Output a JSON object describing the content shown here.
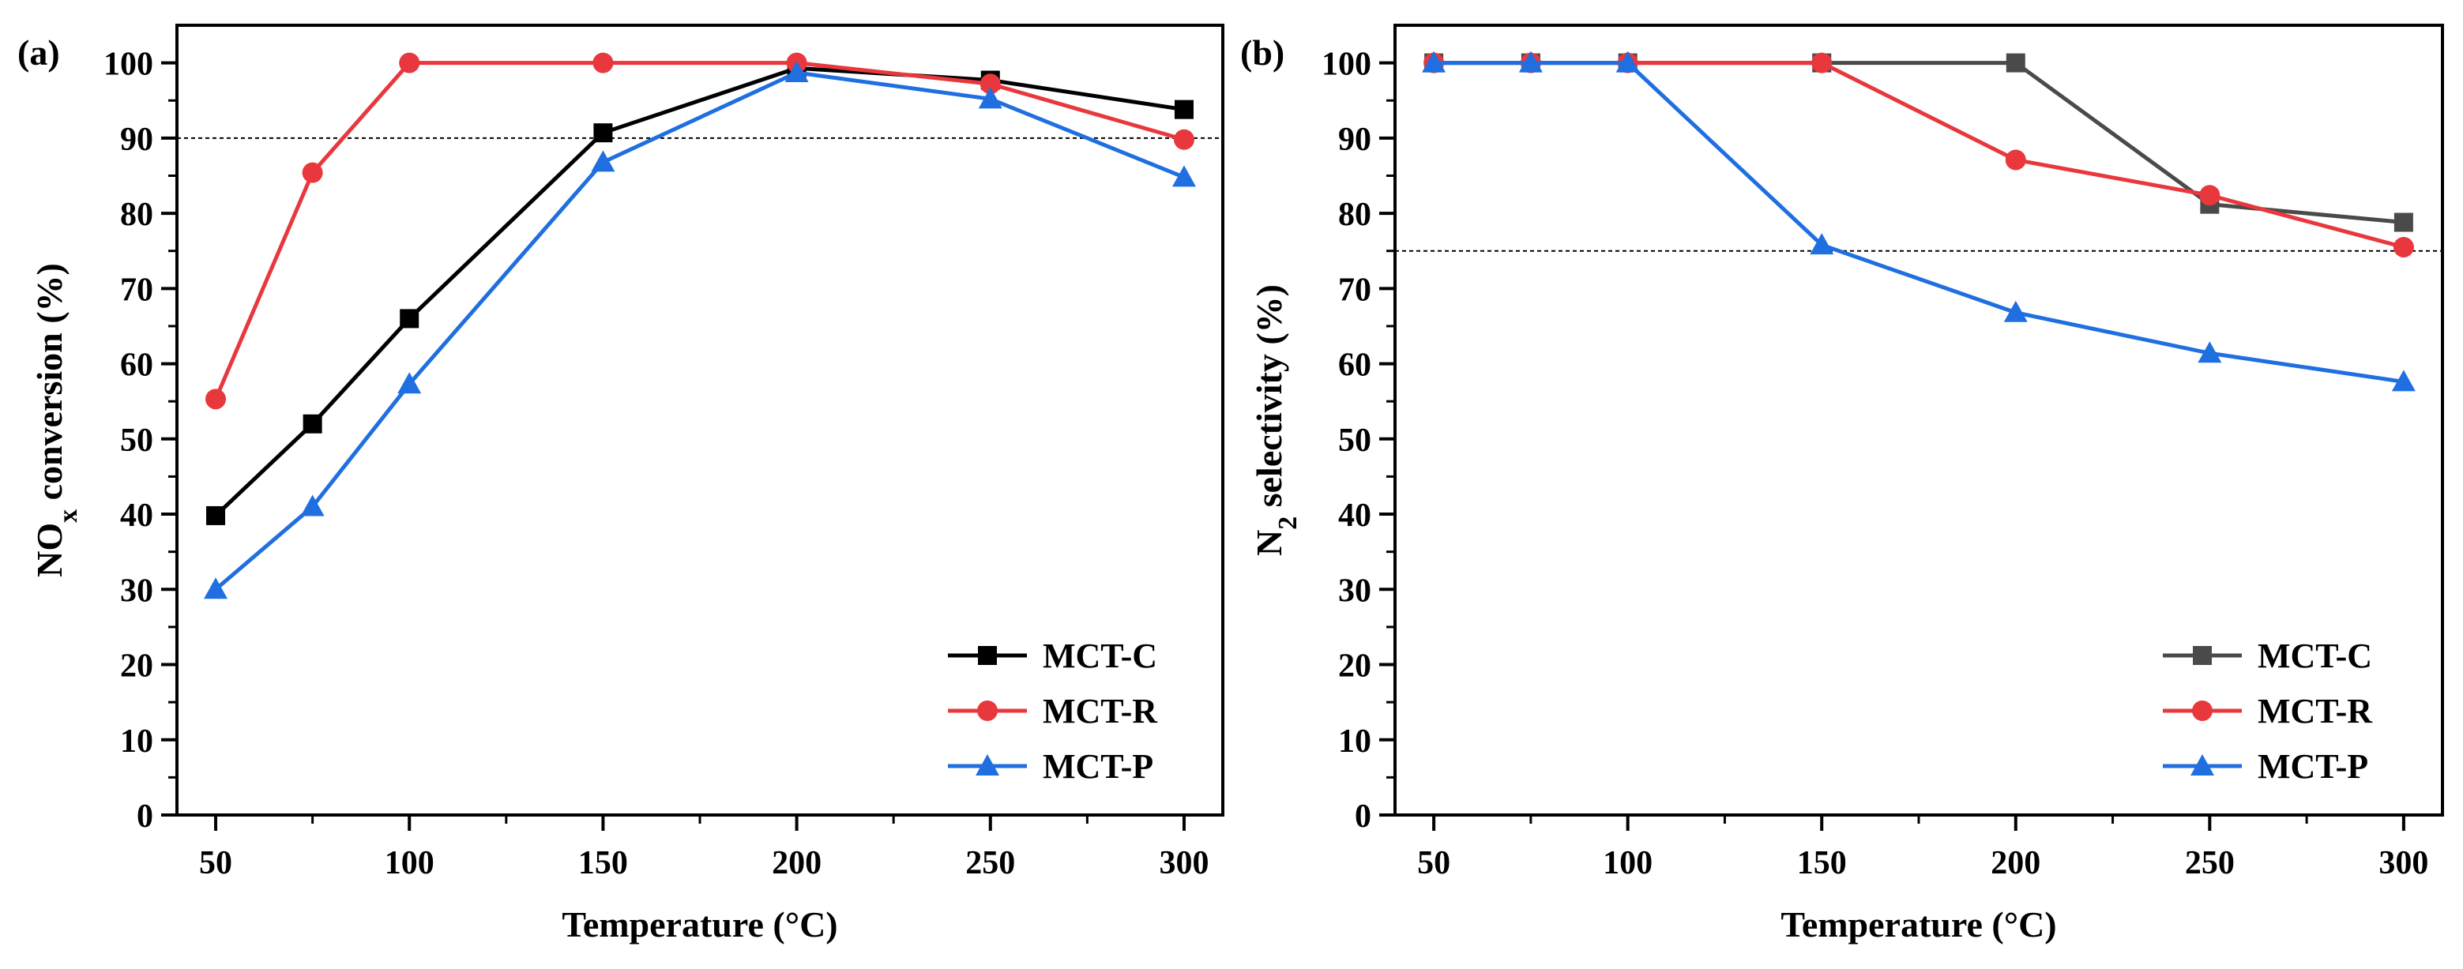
{
  "chart_data": [
    {
      "type": "line",
      "panel_label": "(a)",
      "xlabel": "Temperature (°C)",
      "ylabel": {
        "prefix": "NO",
        "sub": "x",
        "suffix": " conversion (%)"
      },
      "xlim": [
        40,
        310
      ],
      "ylim": [
        0,
        105
      ],
      "x_ticks": [
        50,
        100,
        150,
        200,
        250,
        300
      ],
      "y_ticks": [
        0,
        10,
        20,
        30,
        40,
        50,
        60,
        70,
        80,
        90,
        100
      ],
      "reference_line": 90,
      "x": [
        50,
        75,
        100,
        150,
        200,
        250,
        300
      ],
      "legend_position": "bottom-right",
      "series": [
        {
          "name": "MCT-C",
          "color": "#000000",
          "marker": "square",
          "values": [
            39.8,
            52.0,
            66.0,
            90.7,
            99.3,
            97.7,
            93.8
          ]
        },
        {
          "name": "MCT-R",
          "color": "#e8383d",
          "marker": "circle",
          "values": [
            55.3,
            85.4,
            100,
            100,
            100,
            97.2,
            89.8
          ]
        },
        {
          "name": "MCT-P",
          "color": "#1f6fe0",
          "marker": "triangle",
          "values": [
            30.0,
            41.0,
            57.3,
            86.8,
            98.7,
            95.2,
            84.8
          ]
        }
      ]
    },
    {
      "type": "line",
      "panel_label": "(b)",
      "xlabel": "Temperature (°C)",
      "ylabel": {
        "prefix": "N",
        "sub": "2",
        "suffix": " selectivity (%)"
      },
      "xlim": [
        40,
        310
      ],
      "ylim": [
        0,
        105
      ],
      "x_ticks": [
        50,
        100,
        150,
        200,
        250,
        300
      ],
      "y_ticks": [
        0,
        10,
        20,
        30,
        40,
        50,
        60,
        70,
        80,
        90,
        100
      ],
      "reference_line": 75,
      "x": [
        50,
        75,
        100,
        150,
        200,
        250,
        300
      ],
      "legend_position": "bottom-right",
      "series": [
        {
          "name": "MCT-C",
          "color": "#4a4a4a",
          "marker": "square",
          "values": [
            100,
            100,
            100,
            100,
            100,
            81.2,
            78.8
          ]
        },
        {
          "name": "MCT-R",
          "color": "#e8383d",
          "marker": "circle",
          "values": [
            100,
            100,
            100,
            100,
            87.1,
            82.4,
            75.5
          ]
        },
        {
          "name": "MCT-P",
          "color": "#1f6fe0",
          "marker": "triangle",
          "values": [
            100,
            100,
            100,
            75.8,
            66.8,
            61.4,
            57.6
          ]
        }
      ]
    }
  ]
}
